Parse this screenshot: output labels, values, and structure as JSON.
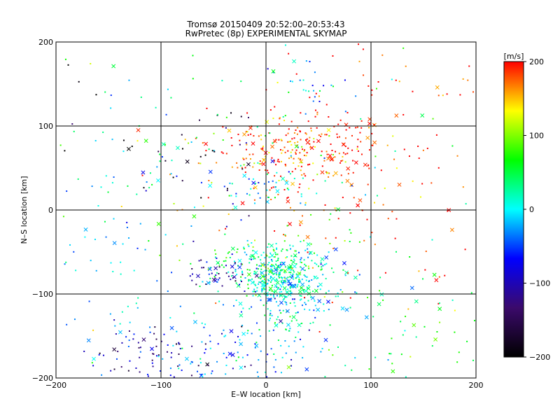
{
  "chart_data": {
    "type": "scatter",
    "title": "Tromsø 20150409 20:52:00–20:53:43",
    "subtitle": "RwPretec (8p) EXPERIMENTAL SKYMAP",
    "xlabel": "E–W location [km]",
    "ylabel": "N–S location [km]",
    "xlim": [
      -200,
      200
    ],
    "ylim": [
      -200,
      200
    ],
    "x_ticks": [
      -200,
      -100,
      0,
      100,
      200
    ],
    "y_ticks": [
      -200,
      -100,
      0,
      100,
      200
    ],
    "x_tick_labels": [
      "−200",
      "−100",
      "0",
      "100",
      "200"
    ],
    "y_tick_labels": [
      "−200",
      "−100",
      "0",
      "100",
      "200"
    ],
    "grid": true,
    "colorbar": {
      "label": "[m/s]",
      "range": [
        -200,
        200
      ],
      "ticks": [
        -200,
        -100,
        0,
        100,
        200
      ],
      "tick_labels": [
        "−200",
        "−100",
        "0",
        "100",
        "200"
      ],
      "colors": [
        "#000000",
        "#3b0a6b",
        "#0000ff",
        "#00ffff",
        "#00ff00",
        "#ffff00",
        "#ff0000"
      ]
    },
    "marker_legend": {
      "small": "·",
      "large": "×"
    },
    "clusters": [
      {
        "x": 35,
        "y": 72,
        "sx": 45,
        "sy": 20,
        "v": 185,
        "n": 240
      },
      {
        "x": 15,
        "y": 40,
        "sx": 60,
        "sy": 40,
        "v": 170,
        "n": 90
      },
      {
        "x": 10,
        "y": -85,
        "sx": 18,
        "sy": 18,
        "v": 10,
        "n": 230
      },
      {
        "x": 25,
        "y": -70,
        "sx": 30,
        "sy": 20,
        "v": 25,
        "n": 120
      },
      {
        "x": -10,
        "y": -65,
        "sx": 25,
        "sy": 15,
        "v": 50,
        "n": 80
      },
      {
        "x": 20,
        "y": -110,
        "sx": 35,
        "sy": 30,
        "v": -10,
        "n": 120
      },
      {
        "x": -45,
        "y": -75,
        "sx": 18,
        "sy": 12,
        "v": -110,
        "n": 45
      },
      {
        "x": -40,
        "y": -170,
        "sx": 55,
        "sy": 20,
        "v": -40,
        "n": 110
      },
      {
        "x": -110,
        "y": -170,
        "sx": 35,
        "sy": 18,
        "v": -120,
        "n": 55
      },
      {
        "x": 40,
        "y": 145,
        "sx": 25,
        "sy": 20,
        "v": -20,
        "n": 25
      },
      {
        "x": 0,
        "y": 30,
        "sx": 30,
        "sy": 15,
        "v": -10,
        "n": 50
      },
      {
        "x": -110,
        "y": 30,
        "sx": 60,
        "sy": 60,
        "v": 0,
        "n": 60
      },
      {
        "x": -150,
        "y": -80,
        "sx": 45,
        "sy": 60,
        "v": -30,
        "n": 60
      },
      {
        "x": 100,
        "y": -40,
        "sx": 60,
        "sy": 60,
        "v": 190,
        "n": 60
      },
      {
        "x": 120,
        "y": 150,
        "sx": 60,
        "sy": 40,
        "v": 195,
        "n": 45
      },
      {
        "x": -60,
        "y": 60,
        "sx": 40,
        "sy": 30,
        "v": -170,
        "n": 25
      },
      {
        "x": 130,
        "y": -150,
        "sx": 50,
        "sy": 40,
        "v": 70,
        "n": 45
      },
      {
        "x": -170,
        "y": 130,
        "sx": 30,
        "sy": 50,
        "v": -190,
        "n": 12
      },
      {
        "x": 0,
        "y": 0,
        "sx": 130,
        "sy": 130,
        "v": 60,
        "n": 140
      }
    ]
  }
}
